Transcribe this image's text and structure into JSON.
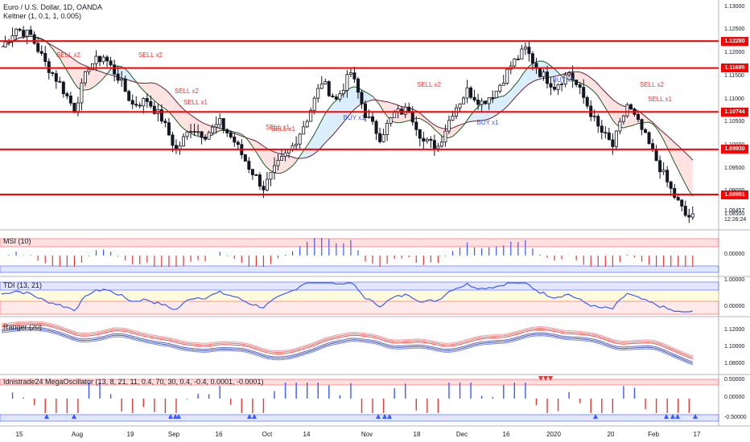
{
  "header": {
    "symbol_line": "Euro / U.S. Dollar, 1D, OANDA",
    "indicator_line": "Keltner (1, 0.1, 1, 0.005)"
  },
  "price_axis": {
    "ticks": [
      "1.13000",
      "1.12500",
      "1.12000",
      "1.11500",
      "1.11000",
      "1.10500",
      "1.10000",
      "1.09500",
      "1.09000",
      "1.08500"
    ],
    "last_price": "1.08457",
    "countdown": "12:26:24"
  },
  "levels": [
    {
      "label": "1.12280",
      "value": 1.1228
    },
    {
      "label": "1.11695",
      "value": 1.11695
    },
    {
      "label": "1.10744",
      "value": 1.10744
    },
    {
      "label": "1.09930",
      "value": 1.0993
    },
    {
      "label": "1.08951",
      "value": 1.08951
    }
  ],
  "colors": {
    "level": "#ff0000",
    "up": "#ffffff",
    "down": "#131722",
    "sell": "#e53935",
    "buy": "#3d5afe",
    "green": "#4caf50"
  },
  "x_axis": {
    "labels": [
      "15",
      "Aug",
      "19",
      "Sep",
      "16",
      "Oct",
      "14",
      "Nov",
      "18",
      "Dec",
      "16",
      "2020",
      "20",
      "Feb",
      "17"
    ]
  },
  "signals": [
    {
      "text": "SELL x2",
      "kind": "sell"
    },
    {
      "text": "SELL x2",
      "kind": "sell"
    },
    {
      "text": "SELL x2",
      "kind": "sell"
    },
    {
      "text": "SELL x1",
      "kind": "sell"
    },
    {
      "text": "SELL x1",
      "kind": "sell"
    },
    {
      "text": "SELL x1",
      "kind": "sell"
    },
    {
      "text": "SELL x2",
      "kind": "sell"
    },
    {
      "text": "SELL x2",
      "kind": "sell"
    },
    {
      "text": "SELL x1",
      "kind": "sell"
    },
    {
      "text": "BUY x1",
      "kind": "buy"
    },
    {
      "text": "BUY x1",
      "kind": "buy"
    },
    {
      "text": "BUY x1",
      "kind": "buy"
    }
  ],
  "panes": {
    "msi": {
      "title": "MSI (10)",
      "ticks": [
        "0.00000"
      ]
    },
    "tdi": {
      "title": "TDI (13, 21)",
      "ticks": [
        "1.00000",
        "0.00000"
      ]
    },
    "ranger": {
      "title": "Ranger (20)",
      "ticks": [
        "1.12000",
        "1.10000",
        "1.08000"
      ]
    },
    "mega": {
      "title": "Idnistrade24 MegaOscillator (13, 8, 21, 11, 0.4, 70, 30, 0.4, -0.4, 0.0001, -0.0001)",
      "ticks": [
        "0.50000",
        "0.00000",
        "-0.50000"
      ]
    }
  },
  "chart_data": {
    "type": "candlestick",
    "instrument": "Euro / U.S. Dollar",
    "timeframe": "1D",
    "y_range": [
      1.082,
      1.131
    ],
    "horizontal_levels": [
      1.1228,
      1.11695,
      1.10744,
      1.0993,
      1.08951
    ],
    "last_price": 1.08457,
    "close_path": [
      {
        "t": 0,
        "y": 1.1215
      },
      {
        "t": 4,
        "y": 1.1255
      },
      {
        "t": 8,
        "y": 1.124
      },
      {
        "t": 12,
        "y": 1.118
      },
      {
        "t": 16,
        "y": 1.1135
      },
      {
        "t": 20,
        "y": 1.108
      },
      {
        "t": 24,
        "y": 1.1175
      },
      {
        "t": 28,
        "y": 1.1195
      },
      {
        "t": 32,
        "y": 1.115
      },
      {
        "t": 36,
        "y": 1.109
      },
      {
        "t": 40,
        "y": 1.11
      },
      {
        "t": 44,
        "y": 1.106
      },
      {
        "t": 48,
        "y": 1.099
      },
      {
        "t": 52,
        "y": 1.104
      },
      {
        "t": 56,
        "y": 1.1025
      },
      {
        "t": 60,
        "y": 1.105
      },
      {
        "t": 64,
        "y": 1.101
      },
      {
        "t": 68,
        "y": 1.0955
      },
      {
        "t": 72,
        "y": 1.091
      },
      {
        "t": 76,
        "y": 1.096
      },
      {
        "t": 80,
        "y": 1.1
      },
      {
        "t": 84,
        "y": 1.106
      },
      {
        "t": 88,
        "y": 1.114
      },
      {
        "t": 92,
        "y": 1.11
      },
      {
        "t": 96,
        "y": 1.116
      },
      {
        "t": 100,
        "y": 1.107
      },
      {
        "t": 104,
        "y": 1.102
      },
      {
        "t": 108,
        "y": 1.107
      },
      {
        "t": 112,
        "y": 1.108
      },
      {
        "t": 116,
        "y": 1.101
      },
      {
        "t": 120,
        "y": 1.1
      },
      {
        "t": 124,
        "y": 1.1075
      },
      {
        "t": 128,
        "y": 1.112
      },
      {
        "t": 132,
        "y": 1.1095
      },
      {
        "t": 136,
        "y": 1.112
      },
      {
        "t": 140,
        "y": 1.1175
      },
      {
        "t": 144,
        "y": 1.121
      },
      {
        "t": 148,
        "y": 1.116
      },
      {
        "t": 152,
        "y": 1.113
      },
      {
        "t": 156,
        "y": 1.116
      },
      {
        "t": 160,
        "y": 1.1105
      },
      {
        "t": 164,
        "y": 1.104
      },
      {
        "t": 168,
        "y": 1.1
      },
      {
        "t": 172,
        "y": 1.109
      },
      {
        "t": 176,
        "y": 1.1035
      },
      {
        "t": 180,
        "y": 1.097
      },
      {
        "t": 184,
        "y": 1.0905
      },
      {
        "t": 188,
        "y": 1.085
      },
      {
        "t": 190,
        "y": 1.0845
      }
    ]
  }
}
